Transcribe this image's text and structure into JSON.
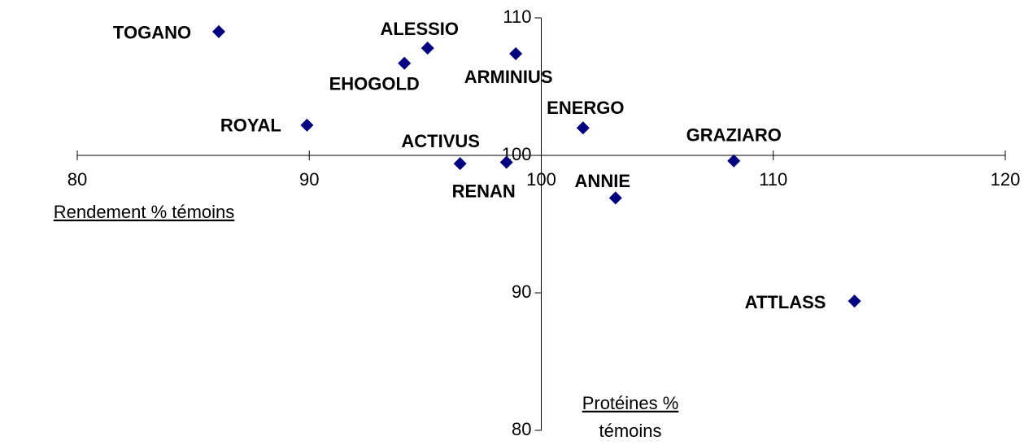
{
  "chart_data": {
    "type": "scatter",
    "axis_titles": [
      "Rendement  % témoins",
      "Protéines  %",
      "témoins"
    ],
    "series": [
      {
        "color": "#000080",
        "labels": [
          "TOGANO",
          "ALESSIO",
          "EHOGOLD",
          "ARMINIUS",
          "ROYAL",
          "ENERGO",
          "ACTIVUS",
          "RENAN",
          "GRAZIARO",
          "ANNIE",
          "ATTLASS"
        ],
        "x": [
          86.1,
          95.1,
          94.1,
          98.9,
          89.9,
          101.8,
          96.5,
          98.5,
          108.3,
          103.2,
          113.5
        ],
        "values": [
          109.0,
          107.8,
          106.7,
          107.4,
          102.2,
          102.0,
          99.4,
          99.5,
          99.6,
          96.9,
          89.4
        ]
      }
    ],
    "xlim": [
      80,
      120
    ],
    "xticks": [
      80,
      90,
      100,
      110,
      120
    ],
    "ylim": [
      80,
      110
    ],
    "yticks": [
      80,
      90,
      100,
      110
    ],
    "axes_cross": [
      100,
      100
    ]
  }
}
